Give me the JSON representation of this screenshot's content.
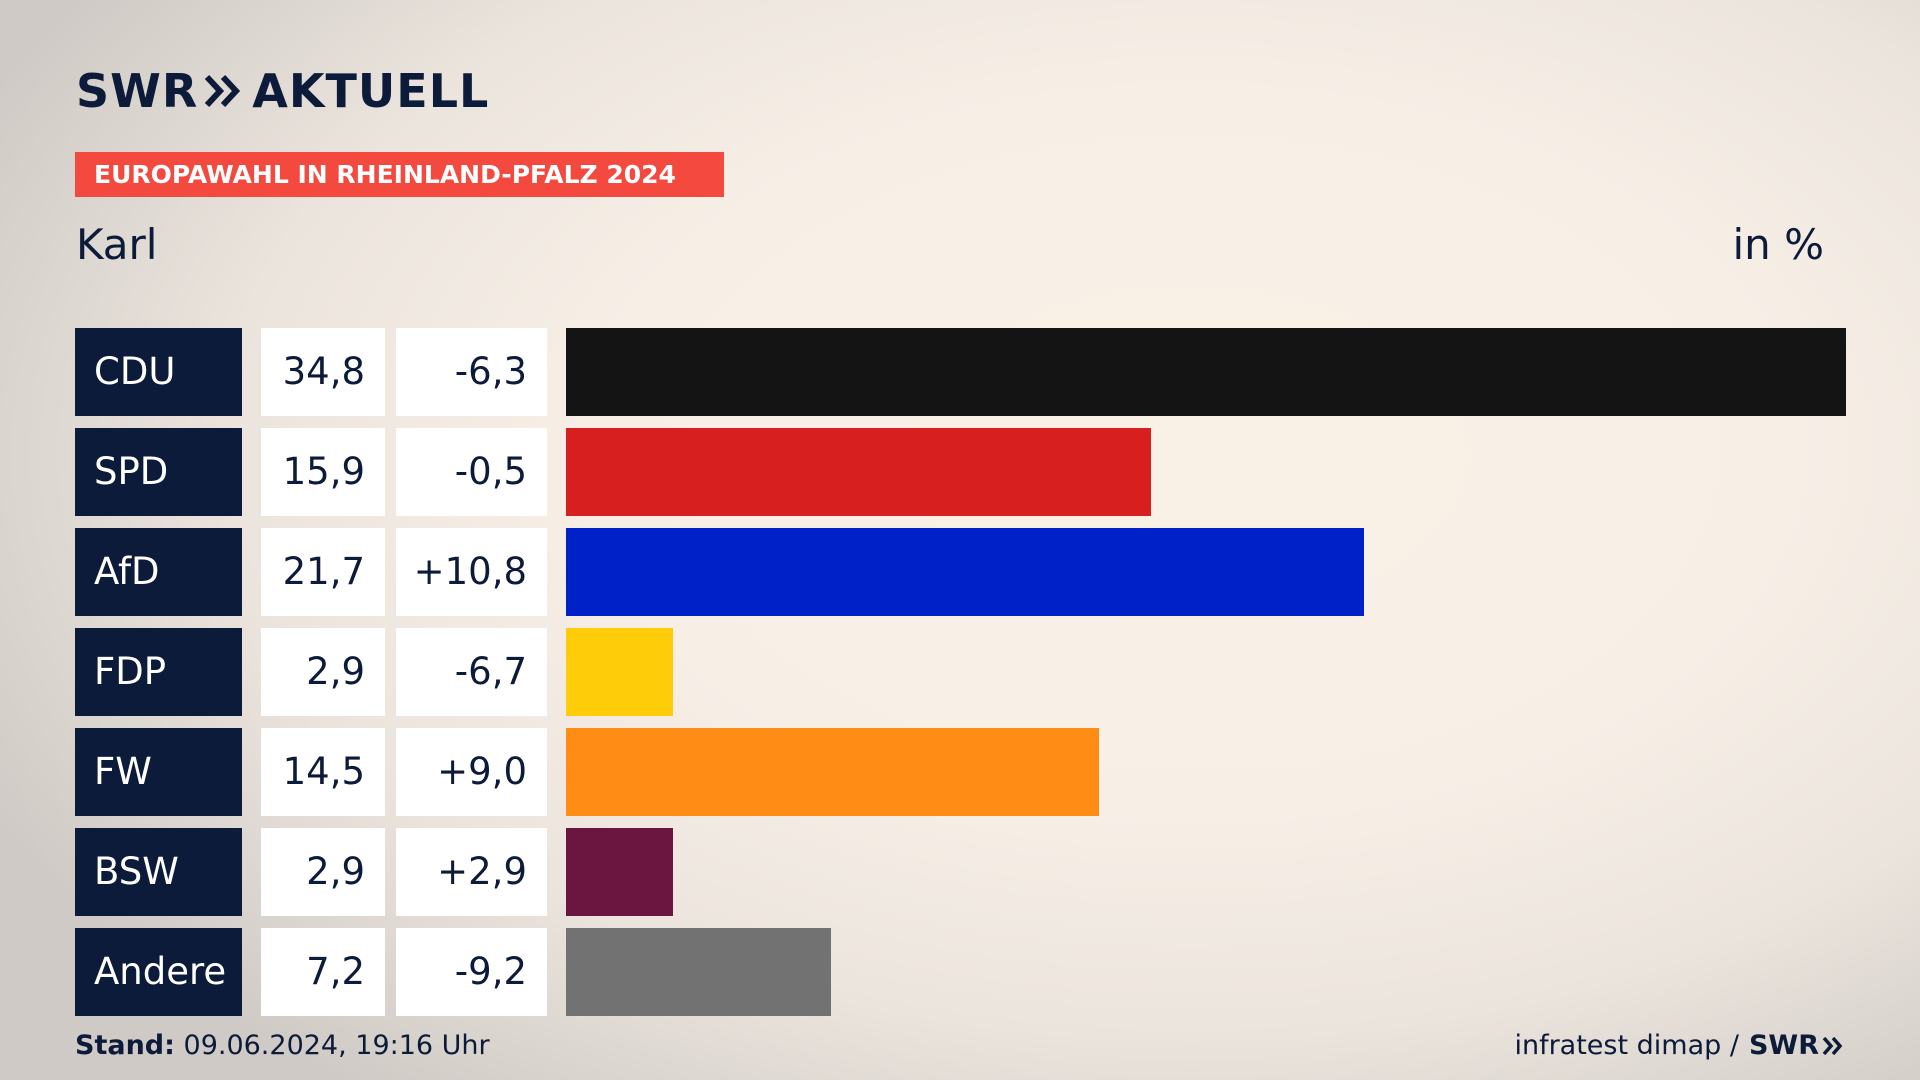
{
  "header": {
    "logo_text_left": "SWR",
    "logo_text_right": "AKTUELL",
    "banner": "EUROPAWAHL IN RHEINLAND-PFALZ 2024",
    "region": "Karl",
    "unit": "in %"
  },
  "colors": {
    "navy": "#0d1b3a",
    "banner_red": "#f3493f"
  },
  "chart_data": {
    "type": "bar",
    "orientation": "horizontal",
    "title": "EUROPAWAHL IN RHEINLAND-PFALZ 2024",
    "subtitle": "Karl",
    "unit_label": "in %",
    "categories": [
      "CDU",
      "SPD",
      "AfD",
      "FDP",
      "FW",
      "BSW",
      "Andere"
    ],
    "values": [
      34.8,
      15.9,
      21.7,
      2.9,
      14.5,
      2.9,
      7.2
    ],
    "value_labels": [
      "34,8",
      "15,9",
      "21,7",
      "2,9",
      "14,5",
      "2,9",
      "7,2"
    ],
    "diff_labels": [
      "-6,3",
      "-0,5",
      "+10,8",
      "-6,7",
      "+9,0",
      "+2,9",
      "-9,2"
    ],
    "diffs": [
      -6.3,
      -0.5,
      10.8,
      -6.7,
      9.0,
      2.9,
      -9.2
    ],
    "colors": [
      "#141414",
      "#d71f1f",
      "#0021c8",
      "#ffcc0a",
      "#ff8c14",
      "#6a1640",
      "#727272"
    ],
    "xlim": [
      0,
      34.8
    ],
    "grid": false,
    "legend": "none"
  },
  "footer": {
    "stand_label": "Stand:",
    "stand_value": "09.06.2024, 19:16 Uhr",
    "source": "infratest dimap /",
    "source_logo": "SWR"
  }
}
